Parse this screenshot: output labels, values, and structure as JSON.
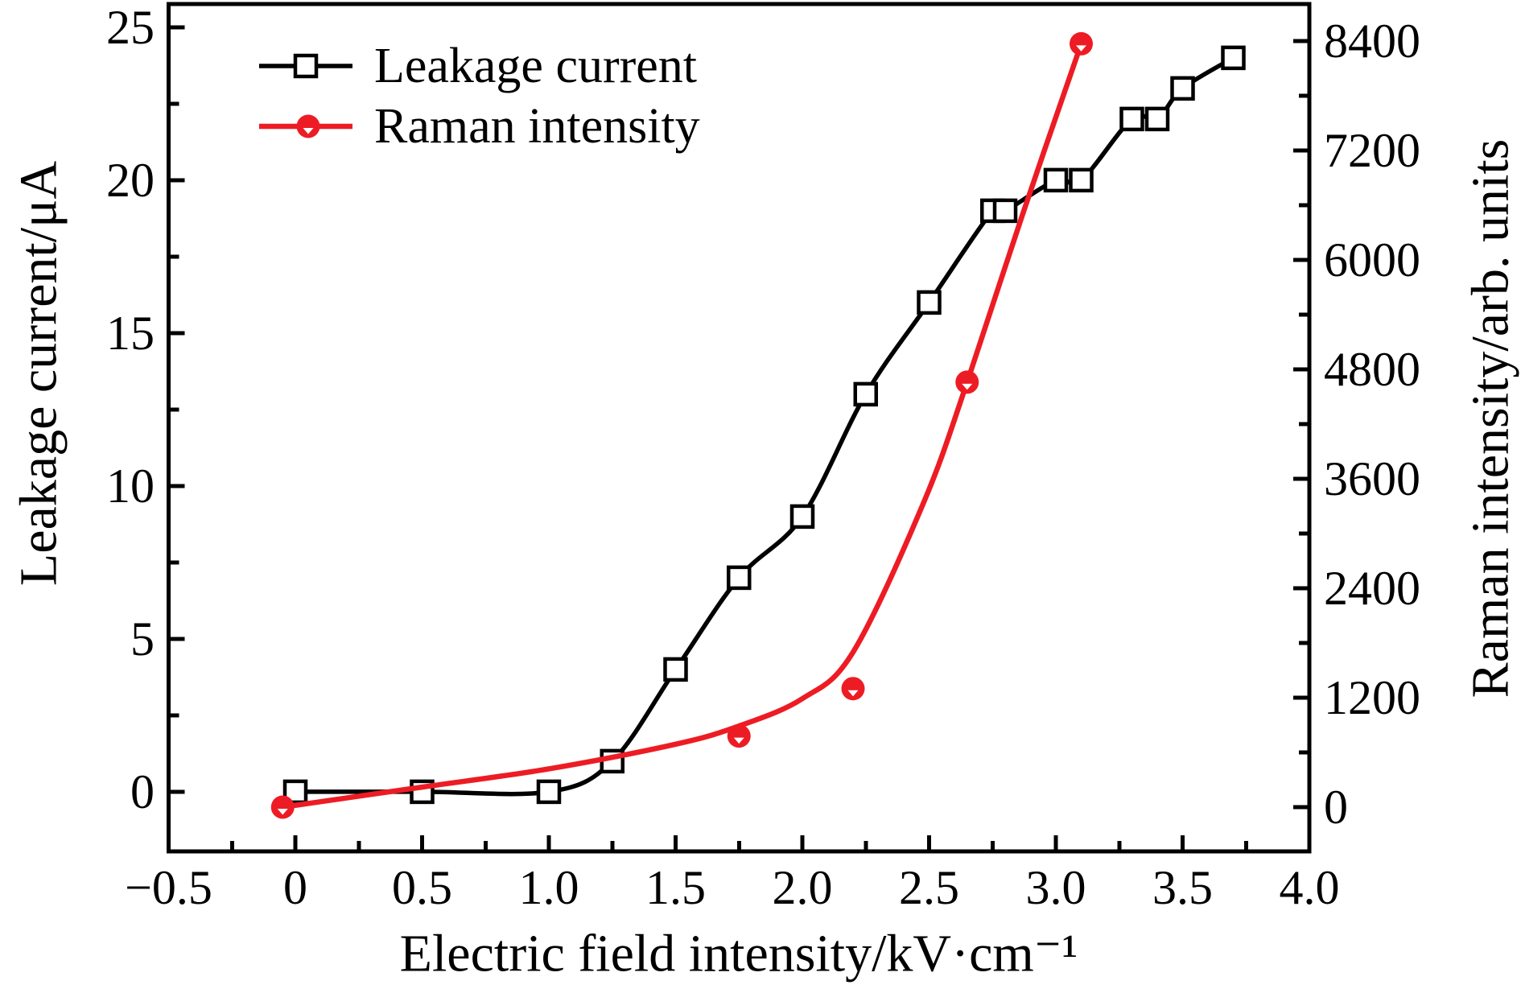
{
  "figure": {
    "background": "#ffffff",
    "frame_color": "#000000"
  },
  "colors": {
    "black": "#000000",
    "red": "#ed1c24",
    "white": "#ffffff"
  },
  "legend": {
    "position": "top-left-inside",
    "items": [
      {
        "label": "Leakage current",
        "marker": "open-square",
        "color": "#000000"
      },
      {
        "label": "Raman intensity",
        "marker": "filled-circle",
        "color": "#ed1c24"
      }
    ]
  },
  "axes": {
    "x": {
      "label": "Electric field intensity/kV·cm⁻¹",
      "min": -0.5,
      "max": 4.0,
      "major_ticks": [
        -0.5,
        0,
        0.5,
        1.0,
        1.5,
        2.0,
        2.5,
        3.0,
        3.5,
        4.0
      ],
      "major_tick_labels": [
        "−0.5",
        "0",
        "0.5",
        "1.0",
        "1.5",
        "2.0",
        "2.5",
        "3.0",
        "3.5",
        "4.0"
      ],
      "minor_tick_step": 0.25
    },
    "y_left": {
      "label": "Leakage current/μA",
      "min": -1.95,
      "max": 25.76,
      "major_ticks": [
        0,
        5,
        10,
        15,
        20,
        25
      ],
      "major_tick_labels": [
        "0",
        "5",
        "10",
        "15",
        "20",
        "25"
      ],
      "minor_tick_step": 2.5
    },
    "y_right": {
      "label": "Raman intensity/arb. units",
      "min": -485,
      "max": 8806,
      "major_ticks": [
        0,
        1200,
        2400,
        3600,
        4800,
        6000,
        7200,
        8400
      ],
      "major_tick_labels": [
        "0",
        "1200",
        "2400",
        "3600",
        "4800",
        "6000",
        "7200",
        "8400"
      ],
      "minor_tick_step": 600
    }
  },
  "chart_data": {
    "type": "line",
    "title": "",
    "xlabel": "Electric field intensity/kV·cm⁻¹",
    "ylabel_left": "Leakage current/μA",
    "ylabel_right": "Raman intensity/arb. units",
    "xlim": [
      -0.5,
      4.0
    ],
    "ylim_left": [
      -1.95,
      25.76
    ],
    "ylim_right": [
      -485,
      8806
    ],
    "grid": false,
    "legend_position": "top-left-inside",
    "series": [
      {
        "name": "Leakage current",
        "axis": "left",
        "color": "#000000",
        "marker": "open-square",
        "line_style": "smooth-through-points",
        "x": [
          0,
          0.5,
          1.0,
          1.25,
          1.5,
          1.75,
          2.0,
          2.25,
          2.5,
          2.75,
          2.8,
          3.0,
          3.1,
          3.3,
          3.4,
          3.5,
          3.7
        ],
        "y": [
          0,
          0,
          0,
          1,
          4,
          7,
          9,
          13,
          16,
          19,
          19,
          20,
          20,
          22,
          22,
          23,
          24
        ]
      },
      {
        "name": "Raman intensity",
        "axis": "right",
        "color": "#ed1c24",
        "marker": "filled-circle",
        "line_style": "fitted-curve",
        "x": [
          -0.05,
          1.75,
          2.2,
          2.65,
          3.1
        ],
        "y": [
          0,
          780,
          1300,
          4660,
          8370
        ],
        "fit_line": {
          "x": [
            -0.05,
            0.5,
            1.0,
            1.5,
            1.75,
            2.0,
            2.2,
            2.48,
            2.65,
            2.87,
            3.1
          ],
          "y": [
            0,
            220,
            420,
            690,
            890,
            1190,
            1700,
            3350,
            4660,
            6510,
            8370
          ]
        }
      }
    ]
  }
}
